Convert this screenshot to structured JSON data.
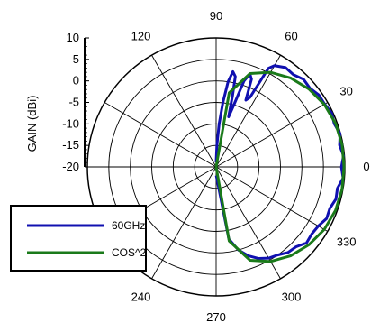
{
  "chart_data": {
    "type": "polar-line",
    "ylabel": "GAIN (dBi)",
    "rlim": [
      -20,
      10
    ],
    "r_ticks": [
      10,
      5,
      0,
      -5,
      -10,
      -15,
      -20
    ],
    "r_tick_labels": [
      "10",
      "5",
      "0",
      "-5",
      "-10",
      "-15",
      "-20"
    ],
    "angle_ticks": [
      0,
      30,
      60,
      90,
      120,
      150,
      180,
      210,
      240,
      270,
      300,
      330
    ],
    "angle_tick_labels": {
      "0": "0",
      "30": "30",
      "60": "60",
      "90": "90",
      "120": "120",
      "240": "240",
      "270": "270",
      "300": "300",
      "330": "330"
    },
    "grid": true,
    "legend_position": "lower-left",
    "series": [
      {
        "name": "60GHz",
        "color": "#1010b0",
        "points": [
          [
            -89,
            -18
          ],
          [
            -80,
            -3
          ],
          [
            -75,
            0
          ],
          [
            -70,
            2
          ],
          [
            -65,
            3.5
          ],
          [
            -60,
            4.5
          ],
          [
            -55,
            5
          ],
          [
            -50,
            6
          ],
          [
            -45,
            6.3
          ],
          [
            -40,
            7.5
          ],
          [
            -35,
            7.2
          ],
          [
            -30,
            7.5
          ],
          [
            -25,
            8.4
          ],
          [
            -20,
            8.2
          ],
          [
            -15,
            8.9
          ],
          [
            -10,
            8.7
          ],
          [
            -5,
            9.7
          ],
          [
            0,
            9.2
          ],
          [
            5,
            9.8
          ],
          [
            10,
            9.2
          ],
          [
            15,
            9.9
          ],
          [
            20,
            9.3
          ],
          [
            25,
            9.7
          ],
          [
            30,
            9.2
          ],
          [
            35,
            9.2
          ],
          [
            40,
            8.5
          ],
          [
            45,
            8.8
          ],
          [
            50,
            8
          ],
          [
            55,
            8.2
          ],
          [
            60,
            7.2
          ],
          [
            62,
            6
          ],
          [
            64,
            -2
          ],
          [
            66,
            -3
          ],
          [
            68,
            2
          ],
          [
            70,
            3
          ],
          [
            72,
            1
          ],
          [
            74,
            -5
          ],
          [
            76,
            -8
          ],
          [
            77,
            -3
          ],
          [
            78,
            1.5
          ],
          [
            80,
            2.5
          ],
          [
            82,
            0
          ],
          [
            84,
            -5
          ],
          [
            86,
            -10
          ],
          [
            88,
            -15
          ],
          [
            90,
            -19
          ]
        ]
      },
      {
        "name": "COS^2",
        "color": "#1a7a1a",
        "points": [
          [
            -89,
            -20
          ],
          [
            -80,
            -2.5
          ],
          [
            -70,
            3.1
          ],
          [
            -60,
            5.4
          ],
          [
            -50,
            7
          ],
          [
            -40,
            8.2
          ],
          [
            -30,
            9.1
          ],
          [
            -20,
            9.6
          ],
          [
            -10,
            9.8
          ],
          [
            0,
            9.8
          ],
          [
            10,
            9.8
          ],
          [
            20,
            9.6
          ],
          [
            30,
            9.1
          ],
          [
            40,
            8.2
          ],
          [
            50,
            7
          ],
          [
            60,
            5.4
          ],
          [
            70,
            3.1
          ],
          [
            80,
            -2.5
          ],
          [
            89,
            -20
          ]
        ]
      }
    ]
  }
}
